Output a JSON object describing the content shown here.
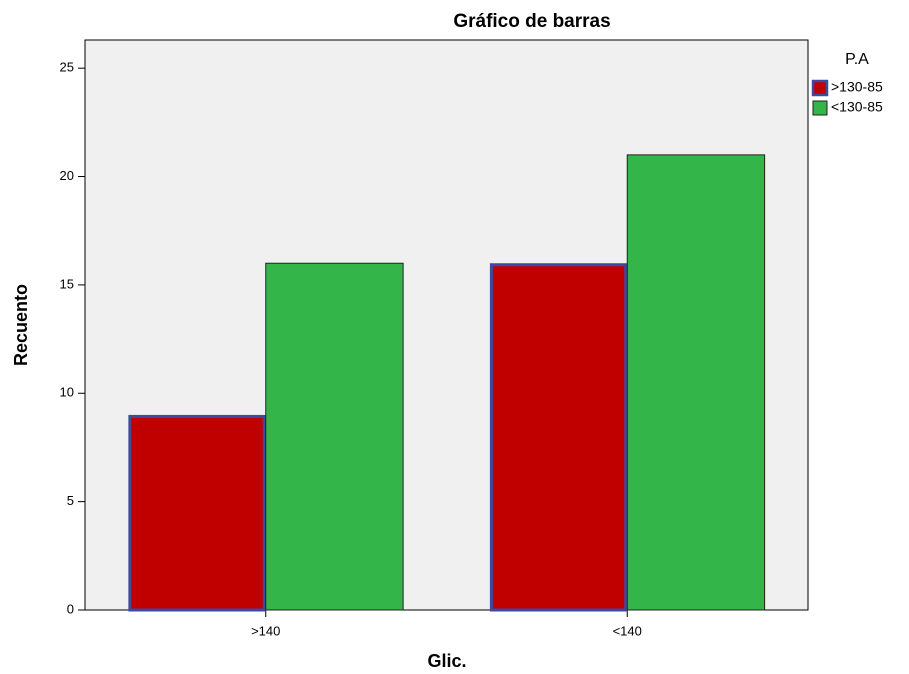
{
  "chart_data": {
    "type": "bar",
    "title": "Gráfico de barras",
    "x_label": "Glic.",
    "y_label": "Recuento",
    "legend_title": "P.A",
    "categories": [
      ">140",
      "<140"
    ],
    "series": [
      {
        "name": ">130-85",
        "color": "#c00000",
        "values": [
          9,
          16
        ]
      },
      {
        "name": "<130-85",
        "color": "#33b54a",
        "values": [
          16,
          21
        ]
      }
    ],
    "ylim": [
      0,
      26.3
    ],
    "yticks": [
      0,
      5,
      10,
      15,
      20,
      25
    ],
    "legend": "right"
  }
}
